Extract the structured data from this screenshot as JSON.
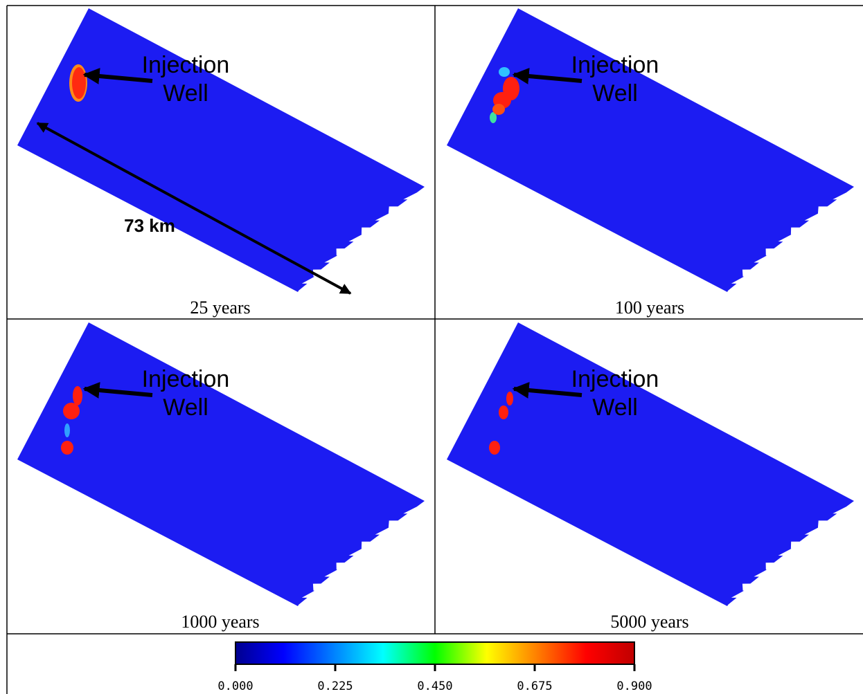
{
  "panels": [
    {
      "label": "25 years",
      "annotation": [
        "Injection",
        "Well"
      ],
      "distance": "73 km"
    },
    {
      "label": "100 years",
      "annotation": [
        "Injection",
        "Well"
      ]
    },
    {
      "label": "1000 years",
      "annotation": [
        "Injection",
        "Well"
      ]
    },
    {
      "label": "5000 years",
      "annotation": [
        "Injection",
        "Well"
      ]
    }
  ],
  "colorbar": {
    "ticks": [
      {
        "value": 0,
        "label": "0.000"
      },
      {
        "value": 0.225,
        "label": "0.225"
      },
      {
        "value": 0.45,
        "label": "0.450"
      },
      {
        "value": 0.675,
        "label": "0.675"
      },
      {
        "value": 0.9,
        "label": "0.900"
      }
    ]
  }
}
